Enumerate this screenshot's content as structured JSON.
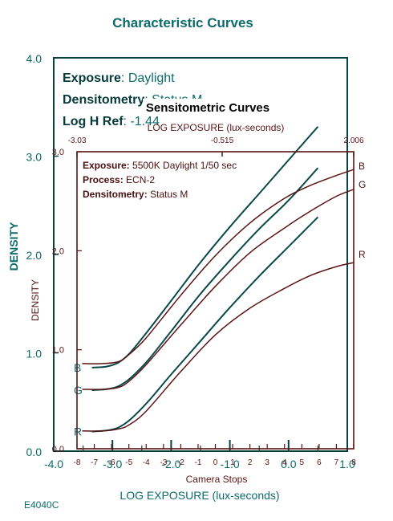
{
  "chart_data": [
    {
      "type": "line",
      "title": "Characteristic Curves",
      "xlabel": "LOG EXPOSURE (lux-seconds)",
      "ylabel": "DENSITY",
      "xlim": [
        -4.0,
        1.0
      ],
      "ylim": [
        0.0,
        4.0
      ],
      "x_ticks": [
        "-4.0",
        "-3.0",
        "-2.0",
        "-1.0",
        "0.0",
        "1.0"
      ],
      "y_ticks": [
        "0.0",
        "1.0",
        "2.0",
        "3.0",
        "4.0"
      ],
      "annotations": [
        {
          "label": "Exposure",
          "value": ": Daylight"
        },
        {
          "label": "Densitometry",
          "value": ": Status M"
        },
        {
          "label": "Log H Ref",
          "value": ": -1.44"
        }
      ],
      "footer_code": "E4040C",
      "series": [
        {
          "name": "B",
          "x": [
            -3.35,
            -3.1,
            -2.9,
            -2.7,
            -2.4,
            -2.0,
            -1.5,
            -1.0,
            -0.5,
            0.0,
            0.5
          ],
          "values": [
            0.85,
            0.86,
            0.9,
            1.0,
            1.22,
            1.53,
            1.92,
            2.28,
            2.62,
            2.96,
            3.3
          ]
        },
        {
          "name": "G",
          "x": [
            -3.35,
            -3.1,
            -2.9,
            -2.7,
            -2.4,
            -2.0,
            -1.5,
            -1.0,
            -0.5,
            0.0,
            0.5
          ],
          "values": [
            0.62,
            0.63,
            0.66,
            0.74,
            0.92,
            1.22,
            1.6,
            1.94,
            2.26,
            2.55,
            2.88
          ]
        },
        {
          "name": "R",
          "x": [
            -3.35,
            -3.1,
            -2.9,
            -2.7,
            -2.4,
            -2.0,
            -1.5,
            -1.0,
            -0.5,
            0.0,
            0.5
          ],
          "values": [
            0.2,
            0.21,
            0.24,
            0.32,
            0.5,
            0.78,
            1.12,
            1.46,
            1.78,
            2.08,
            2.38
          ]
        }
      ],
      "curve_labels": [
        "B",
        "G",
        "R"
      ]
    },
    {
      "type": "line",
      "title": "Sensitometric Curves",
      "xlabel_top": "LOG EXPOSURE (lux-seconds)",
      "xlabel_bottom": "Camera Stops",
      "ylabel": "DENSITY",
      "xlim": [
        -8,
        8
      ],
      "ylim": [
        0.0,
        3.0
      ],
      "top_ticks": [
        "-3.03",
        "-0.515",
        "2.006"
      ],
      "bottom_ticks": [
        "-8",
        "-7",
        "-6",
        "-5",
        "-4",
        "-3",
        "-2",
        "-1",
        "0",
        "1",
        "2",
        "3",
        "4",
        "5",
        "6",
        "7",
        "8"
      ],
      "y_ticks": [
        "0.0",
        "1.0",
        "2.0",
        "3.0"
      ],
      "annotations": [
        {
          "label": "Exposure:",
          "value": " 5500K Daylight 1/50 sec"
        },
        {
          "label": "Process:",
          "value": " ECN-2"
        },
        {
          "label": "Densitometry:",
          "value": " Status M"
        }
      ],
      "series": [
        {
          "name": "B",
          "x": [
            -7.7,
            -6.5,
            -5.6,
            -5.0,
            -4.0,
            -2.0,
            0.0,
            2.0,
            4.0,
            5.5,
            7.0,
            8.0
          ],
          "values": [
            0.86,
            0.86,
            0.88,
            0.95,
            1.12,
            1.55,
            1.95,
            2.28,
            2.53,
            2.66,
            2.76,
            2.82
          ]
        },
        {
          "name": "G",
          "x": [
            -7.7,
            -6.5,
            -5.6,
            -5.0,
            -4.0,
            -2.0,
            0.0,
            2.0,
            4.0,
            5.5,
            7.0,
            8.0
          ],
          "values": [
            0.6,
            0.6,
            0.62,
            0.68,
            0.85,
            1.25,
            1.64,
            1.98,
            2.23,
            2.4,
            2.55,
            2.62
          ]
        },
        {
          "name": "R",
          "x": [
            -7.7,
            -6.5,
            -5.6,
            -5.0,
            -4.0,
            -2.0,
            0.0,
            2.0,
            4.0,
            5.5,
            7.0,
            8.0
          ],
          "values": [
            0.18,
            0.18,
            0.2,
            0.24,
            0.38,
            0.78,
            1.15,
            1.42,
            1.62,
            1.75,
            1.84,
            1.88
          ]
        }
      ],
      "curve_labels": [
        "B",
        "G",
        "R"
      ]
    }
  ]
}
